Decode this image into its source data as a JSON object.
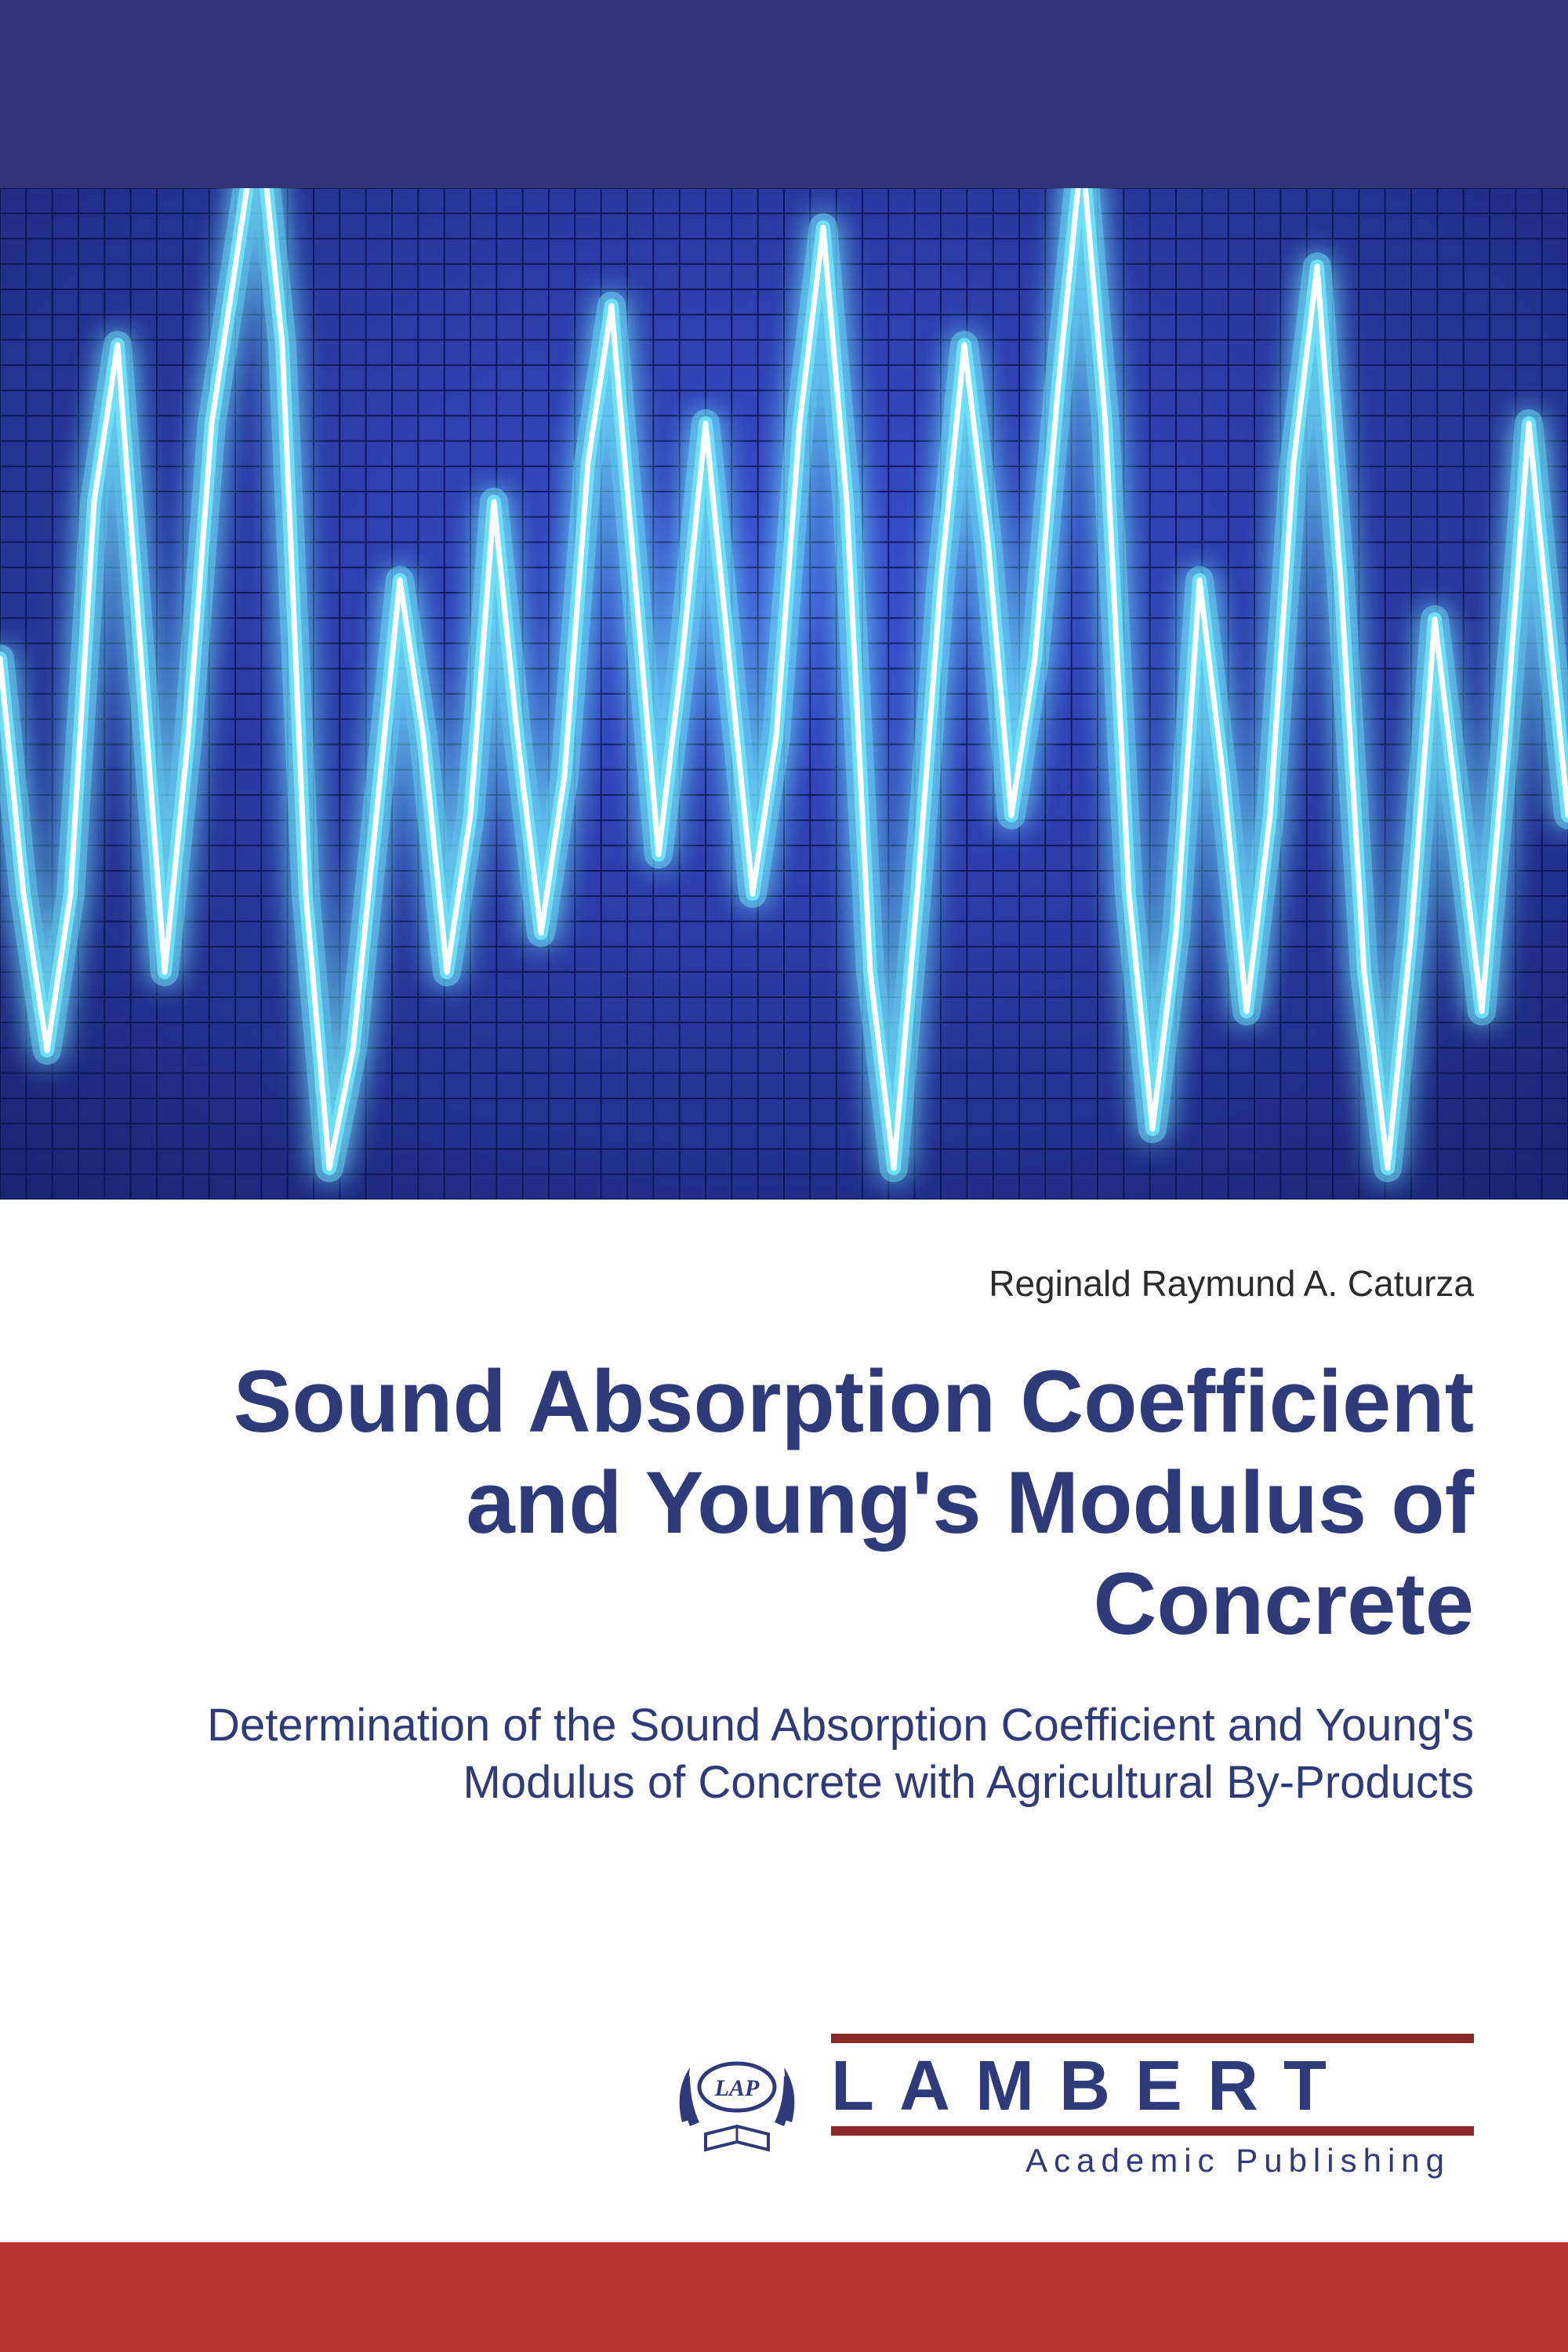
{
  "cover": {
    "author": "Reginald Raymund A. Caturza",
    "title": "Sound Absorption Coefficient and Young's Modulus of Concrete",
    "subtitle": "Determination of the Sound Absorption Coefficient and Young's Modulus of Concrete with Agricultural By-Products"
  },
  "publisher": {
    "badge": "LAP",
    "name": "LAMBERT",
    "sub": "Academic Publishing"
  },
  "colors": {
    "top_band": "#353378",
    "wave_bg": "#1e2a7a",
    "title_text": "#2f3a7a",
    "author_text": "#2b2b2b",
    "bottom_band": "#b83535",
    "logo_line": "#8a2929",
    "grid_line": "#0f1750",
    "wave_core": "#ffffff",
    "wave_glow": "#7fd8ff"
  },
  "waveform": {
    "type": "line",
    "background_gradient": [
      "#3a4fd0",
      "#1a2370"
    ],
    "grid_color": "#0a1550",
    "grid_cols": 60,
    "grid_rows": 40,
    "glow_color": "#6fe8ff",
    "core_color": "#ffffff",
    "stroke_width_glow": 36,
    "stroke_width_mid": 18,
    "stroke_width_core": 7,
    "xlim": [
      0,
      2000
    ],
    "ylim": [
      0,
      1290
    ],
    "points": [
      [
        0,
        600
      ],
      [
        30,
        900
      ],
      [
        60,
        1100
      ],
      [
        90,
        900
      ],
      [
        120,
        400
      ],
      [
        150,
        200
      ],
      [
        180,
        600
      ],
      [
        210,
        1000
      ],
      [
        240,
        700
      ],
      [
        270,
        300
      ],
      [
        300,
        100
      ],
      [
        330,
        -100
      ],
      [
        360,
        200
      ],
      [
        390,
        900
      ],
      [
        420,
        1250
      ],
      [
        450,
        1100
      ],
      [
        480,
        800
      ],
      [
        510,
        500
      ],
      [
        540,
        700
      ],
      [
        570,
        1000
      ],
      [
        600,
        800
      ],
      [
        630,
        400
      ],
      [
        660,
        700
      ],
      [
        690,
        950
      ],
      [
        720,
        750
      ],
      [
        750,
        350
      ],
      [
        780,
        150
      ],
      [
        810,
        500
      ],
      [
        840,
        850
      ],
      [
        870,
        600
      ],
      [
        900,
        300
      ],
      [
        930,
        600
      ],
      [
        960,
        900
      ],
      [
        990,
        700
      ],
      [
        1020,
        300
      ],
      [
        1050,
        50
      ],
      [
        1080,
        400
      ],
      [
        1110,
        1000
      ],
      [
        1140,
        1250
      ],
      [
        1170,
        900
      ],
      [
        1200,
        500
      ],
      [
        1230,
        200
      ],
      [
        1260,
        450
      ],
      [
        1290,
        800
      ],
      [
        1320,
        600
      ],
      [
        1350,
        250
      ],
      [
        1380,
        -50
      ],
      [
        1410,
        300
      ],
      [
        1440,
        900
      ],
      [
        1470,
        1200
      ],
      [
        1500,
        950
      ],
      [
        1530,
        500
      ],
      [
        1560,
        750
      ],
      [
        1590,
        1050
      ],
      [
        1620,
        800
      ],
      [
        1650,
        350
      ],
      [
        1680,
        100
      ],
      [
        1710,
        500
      ],
      [
        1740,
        1000
      ],
      [
        1770,
        1250
      ],
      [
        1800,
        950
      ],
      [
        1830,
        550
      ],
      [
        1860,
        800
      ],
      [
        1890,
        1050
      ],
      [
        1920,
        700
      ],
      [
        1950,
        300
      ],
      [
        1980,
        600
      ],
      [
        2000,
        800
      ]
    ]
  }
}
